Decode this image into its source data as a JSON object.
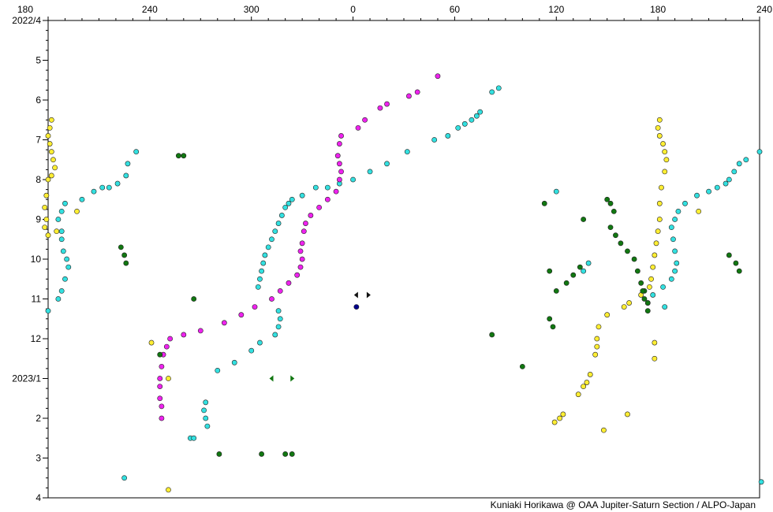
{
  "chart_data": {
    "type": "scatter",
    "title": "",
    "xlabel": "",
    "ylabel": "",
    "x_ticks_top": [
      "180",
      "240",
      "300",
      "0",
      "60",
      "120",
      "180",
      "240"
    ],
    "x_tick_values": [
      -180,
      -120,
      -60,
      0,
      60,
      120,
      180,
      240
    ],
    "xlim": [
      -180,
      240
    ],
    "y_ticks": [
      "2022/4",
      "5",
      "6",
      "7",
      "8",
      "9",
      "10",
      "11",
      "12",
      "2023/1",
      "2",
      "3",
      "4"
    ],
    "y_tick_values": [
      0,
      1,
      2,
      3,
      4,
      5,
      6,
      7,
      8,
      9,
      10,
      11,
      12
    ],
    "ylim": [
      0,
      12
    ],
    "y_direction": "down",
    "grid": false,
    "credit": "Kuniaki Horikawa @ OAA Jupiter-Saturn Section / ALPO-Japan",
    "series": [
      {
        "color": "#ffee33",
        "points": [
          [
            -178,
            2.5
          ],
          [
            -179,
            2.7
          ],
          [
            -180,
            2.9
          ],
          [
            -179,
            3.1
          ],
          [
            -178,
            3.3
          ],
          [
            -177,
            3.5
          ],
          [
            -176,
            3.7
          ],
          [
            -178,
            3.9
          ],
          [
            -180,
            4.0
          ],
          [
            -181,
            4.4
          ],
          [
            -182,
            4.7
          ],
          [
            -181,
            5.0
          ],
          [
            -182,
            5.2
          ],
          [
            -180,
            5.4
          ],
          [
            -163,
            4.8
          ],
          [
            -175,
            5.3
          ],
          [
            -119,
            8.1
          ],
          [
            -109,
            9.0
          ],
          [
            -109,
            11.8
          ],
          [
            181,
            2.5
          ],
          [
            180,
            2.7
          ],
          [
            181,
            2.9
          ],
          [
            183,
            3.1
          ],
          [
            184,
            3.3
          ],
          [
            185,
            3.5
          ],
          [
            184,
            3.8
          ],
          [
            182,
            4.2
          ],
          [
            181,
            4.6
          ],
          [
            181,
            5.0
          ],
          [
            180,
            5.3
          ],
          [
            179,
            5.6
          ],
          [
            178,
            5.9
          ],
          [
            177,
            6.2
          ],
          [
            176,
            6.5
          ],
          [
            175,
            6.7
          ],
          [
            170,
            6.9
          ],
          [
            163,
            7.1
          ],
          [
            160,
            7.2
          ],
          [
            150,
            7.4
          ],
          [
            145,
            7.7
          ],
          [
            144,
            8.0
          ],
          [
            144,
            8.2
          ],
          [
            143,
            8.4
          ],
          [
            140,
            8.9
          ],
          [
            138,
            9.1
          ],
          [
            136,
            9.2
          ],
          [
            133,
            9.4
          ],
          [
            124,
            9.9
          ],
          [
            122,
            10.0
          ],
          [
            119,
            10.1
          ],
          [
            148,
            10.3
          ],
          [
            162,
            9.9
          ],
          [
            178,
            8.1
          ],
          [
            178,
            8.5
          ],
          [
            204,
            4.8
          ]
        ]
      },
      {
        "color": "#33e0e0",
        "points": [
          [
            -128,
            3.3
          ],
          [
            -133,
            3.6
          ],
          [
            -134,
            3.9
          ],
          [
            -139,
            4.1
          ],
          [
            -148,
            4.2
          ],
          [
            -153,
            4.3
          ],
          [
            -160,
            4.5
          ],
          [
            -170,
            4.6
          ],
          [
            -172,
            4.8
          ],
          [
            -174,
            5.0
          ],
          [
            -172,
            5.3
          ],
          [
            -172,
            5.5
          ],
          [
            -171,
            5.8
          ],
          [
            -169,
            6.0
          ],
          [
            -168,
            6.2
          ],
          [
            -170,
            6.5
          ],
          [
            -172,
            6.8
          ],
          [
            -174,
            7.0
          ],
          [
            -180,
            7.3
          ],
          [
            -144,
            4.2
          ],
          [
            -56,
            6.7
          ],
          [
            -55,
            6.5
          ],
          [
            -54,
            6.3
          ],
          [
            -53,
            6.1
          ],
          [
            -52,
            5.9
          ],
          [
            -50,
            5.7
          ],
          [
            -48,
            5.5
          ],
          [
            -46,
            5.3
          ],
          [
            -44,
            5.1
          ],
          [
            -42,
            4.9
          ],
          [
            -40,
            4.7
          ],
          [
            -38,
            4.6
          ],
          [
            -36,
            4.5
          ],
          [
            -30,
            4.4
          ],
          [
            -22,
            4.2
          ],
          [
            -15,
            4.2
          ],
          [
            -8,
            4.1
          ],
          [
            0,
            4.0
          ],
          [
            10,
            3.8
          ],
          [
            20,
            3.6
          ],
          [
            32,
            3.3
          ],
          [
            48,
            3.0
          ],
          [
            56,
            2.9
          ],
          [
            62,
            2.7
          ],
          [
            66,
            2.6
          ],
          [
            70,
            2.5
          ],
          [
            73,
            2.4
          ],
          [
            75,
            2.3
          ],
          [
            82,
            1.8
          ],
          [
            86,
            1.7
          ],
          [
            -44,
            7.3
          ],
          [
            -43,
            7.5
          ],
          [
            -44,
            7.7
          ],
          [
            -46,
            7.9
          ],
          [
            -55,
            8.1
          ],
          [
            -60,
            8.3
          ],
          [
            -70,
            8.6
          ],
          [
            -80,
            8.8
          ],
          [
            -87,
            9.6
          ],
          [
            -88,
            9.8
          ],
          [
            -87,
            10.0
          ],
          [
            -86,
            10.2
          ],
          [
            -96,
            10.5
          ],
          [
            -135,
            11.5
          ],
          [
            -94,
            10.5
          ],
          [
            174,
            7.1
          ],
          [
            177,
            6.9
          ],
          [
            183,
            6.7
          ],
          [
            188,
            6.5
          ],
          [
            190,
            6.3
          ],
          [
            191,
            6.1
          ],
          [
            190,
            5.8
          ],
          [
            189,
            5.5
          ],
          [
            188,
            5.2
          ],
          [
            190,
            5.0
          ],
          [
            192,
            4.8
          ],
          [
            196,
            4.6
          ],
          [
            203,
            4.4
          ],
          [
            210,
            4.3
          ],
          [
            215,
            4.2
          ],
          [
            220,
            4.1
          ],
          [
            222,
            4.0
          ],
          [
            225,
            3.8
          ],
          [
            228,
            3.6
          ],
          [
            232,
            3.5
          ],
          [
            240,
            3.3
          ],
          [
            241,
            11.6
          ],
          [
            139,
            6.1
          ],
          [
            136,
            6.3
          ],
          [
            120,
            4.3
          ],
          [
            184,
            7.2
          ]
        ]
      },
      {
        "color": "#ee22ee",
        "points": [
          [
            50,
            1.4
          ],
          [
            38,
            1.8
          ],
          [
            33,
            1.9
          ],
          [
            20,
            2.1
          ],
          [
            16,
            2.2
          ],
          [
            7,
            2.5
          ],
          [
            3,
            2.7
          ],
          [
            -7,
            2.9
          ],
          [
            -8,
            3.1
          ],
          [
            -9,
            3.4
          ],
          [
            -8,
            3.6
          ],
          [
            -7,
            3.8
          ],
          [
            -8,
            4.0
          ],
          [
            -10,
            4.3
          ],
          [
            -15,
            4.5
          ],
          [
            -20,
            4.7
          ],
          [
            -25,
            4.9
          ],
          [
            -28,
            5.1
          ],
          [
            -29,
            5.3
          ],
          [
            -30,
            5.6
          ],
          [
            -31,
            5.8
          ],
          [
            -30,
            6.0
          ],
          [
            -31,
            6.2
          ],
          [
            -33,
            6.4
          ],
          [
            -38,
            6.6
          ],
          [
            -43,
            6.8
          ],
          [
            -48,
            7.0
          ],
          [
            -58,
            7.2
          ],
          [
            -66,
            7.4
          ],
          [
            -76,
            7.6
          ],
          [
            -90,
            7.8
          ],
          [
            -100,
            7.9
          ],
          [
            -108,
            8.0
          ],
          [
            -110,
            8.2
          ],
          [
            -112,
            8.4
          ],
          [
            -113,
            8.7
          ],
          [
            -114,
            9.0
          ],
          [
            -114,
            9.2
          ],
          [
            -114,
            9.5
          ],
          [
            -113,
            9.7
          ],
          [
            -113,
            10.0
          ]
        ]
      },
      {
        "color": "#117711",
        "points": [
          [
            -103,
            3.4
          ],
          [
            -100,
            3.4
          ],
          [
            -137,
            5.7
          ],
          [
            -135,
            5.9
          ],
          [
            -134,
            6.1
          ],
          [
            -94,
            7.0
          ],
          [
            -54,
            10.9
          ],
          [
            -40,
            10.9
          ],
          [
            -36,
            10.9
          ],
          [
            -79,
            10.9
          ],
          [
            113,
            4.6
          ],
          [
            116,
            6.3
          ],
          [
            118,
            7.7
          ],
          [
            116,
            7.5
          ],
          [
            -114,
            8.4
          ],
          [
            82,
            7.9
          ],
          [
            100,
            8.7
          ],
          [
            150,
            4.5
          ],
          [
            152,
            4.6
          ],
          [
            154,
            4.8
          ],
          [
            152,
            5.2
          ],
          [
            155,
            5.4
          ],
          [
            158,
            5.6
          ],
          [
            162,
            5.8
          ],
          [
            166,
            6.0
          ],
          [
            168,
            6.3
          ],
          [
            170,
            6.6
          ],
          [
            172,
            6.8
          ],
          [
            174,
            7.1
          ],
          [
            172,
            7.0
          ],
          [
            174,
            7.3
          ],
          [
            134,
            6.2
          ],
          [
            130,
            6.4
          ],
          [
            126,
            6.6
          ],
          [
            120,
            6.8
          ],
          [
            136,
            5.0
          ],
          [
            222,
            5.9
          ],
          [
            226,
            6.1
          ],
          [
            228,
            6.3
          ],
          [
            171,
            6.8
          ]
        ]
      },
      {
        "color": "#00008b",
        "points": [
          [
            2,
            7.2
          ]
        ]
      }
    ],
    "annotations": [
      {
        "shape": "triangle-left",
        "x": 2,
        "y": 6.9,
        "color": "#111111"
      },
      {
        "shape": "triangle-right",
        "x": 9,
        "y": 6.9,
        "color": "#111111"
      },
      {
        "shape": "triangle-left",
        "x": -48,
        "y": 9.0,
        "color": "#117711"
      },
      {
        "shape": "triangle-right",
        "x": -36,
        "y": 9.0,
        "color": "#117711"
      }
    ]
  }
}
